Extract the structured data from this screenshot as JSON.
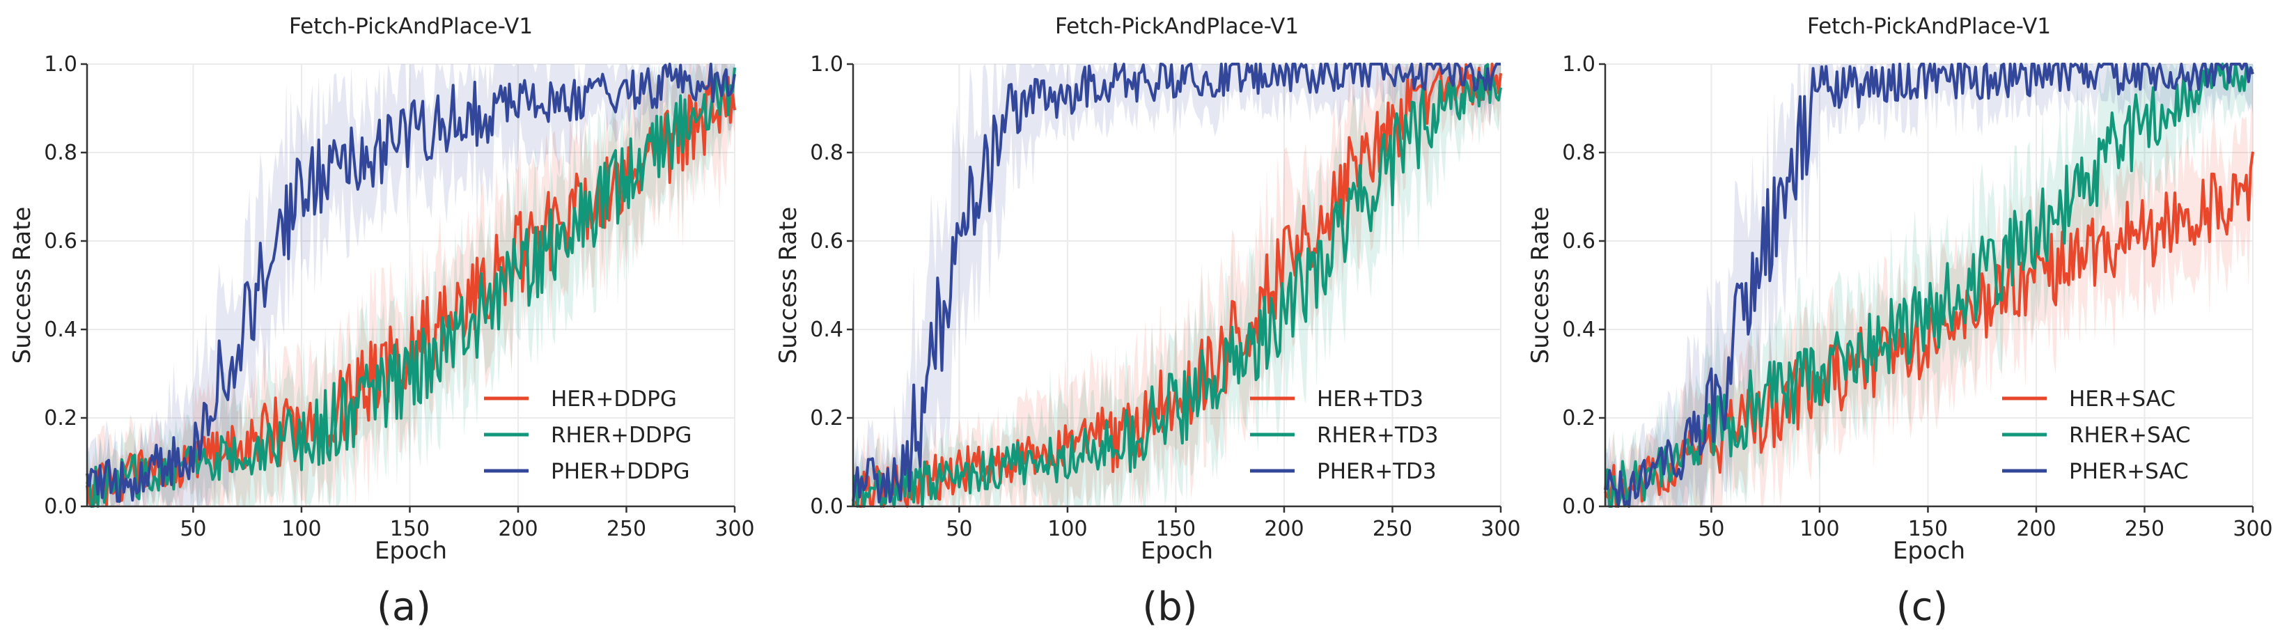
{
  "chart_data": [
    {
      "type": "line",
      "title": "Fetch-PickAndPlace-V1",
      "xlabel": "Epoch",
      "ylabel": "Success Rate",
      "xlim": [
        1,
        300
      ],
      "ylim": [
        0,
        1.0
      ],
      "xticks": [
        "50",
        "100",
        "150",
        "200",
        "250",
        "300"
      ],
      "yticks": [
        "0.0",
        "0.2",
        "0.4",
        "0.6",
        "0.8",
        "1.0"
      ],
      "caption": "(a)",
      "legend_position": "lower-right",
      "series": [
        {
          "name": "HER+DDPG",
          "color": "#e8472b",
          "x": [
            1,
            25,
            50,
            75,
            100,
            125,
            150,
            175,
            200,
            225,
            250,
            275,
            300
          ],
          "values": [
            0.03,
            0.08,
            0.1,
            0.14,
            0.18,
            0.25,
            0.36,
            0.45,
            0.57,
            0.66,
            0.75,
            0.84,
            0.93
          ]
        },
        {
          "name": "RHER+DDPG",
          "color": "#12977a",
          "x": [
            1,
            25,
            50,
            75,
            100,
            125,
            150,
            175,
            200,
            225,
            250,
            275,
            300
          ],
          "values": [
            0.03,
            0.07,
            0.09,
            0.12,
            0.16,
            0.22,
            0.3,
            0.4,
            0.52,
            0.63,
            0.75,
            0.86,
            0.95
          ]
        },
        {
          "name": "PHER+DDPG",
          "color": "#33479a",
          "x": [
            1,
            25,
            50,
            75,
            100,
            125,
            150,
            175,
            200,
            225,
            250,
            275,
            300
          ],
          "values": [
            0.05,
            0.07,
            0.13,
            0.45,
            0.72,
            0.79,
            0.84,
            0.88,
            0.91,
            0.92,
            0.94,
            0.96,
            0.97
          ]
        }
      ]
    },
    {
      "type": "line",
      "title": "Fetch-PickAndPlace-V1",
      "xlabel": "Epoch",
      "ylabel": "Success Rate",
      "xlim": [
        1,
        300
      ],
      "ylim": [
        0,
        1.0
      ],
      "xticks": [
        "50",
        "100",
        "150",
        "200",
        "250",
        "300"
      ],
      "yticks": [
        "0.0",
        "0.2",
        "0.4",
        "0.6",
        "0.8",
        "1.0"
      ],
      "caption": "(b)",
      "legend_position": "lower-right",
      "series": [
        {
          "name": "HER+TD3",
          "color": "#e8472b",
          "x": [
            1,
            25,
            50,
            75,
            100,
            125,
            150,
            175,
            200,
            225,
            250,
            275,
            300
          ],
          "values": [
            0.03,
            0.05,
            0.08,
            0.1,
            0.13,
            0.17,
            0.24,
            0.36,
            0.55,
            0.72,
            0.86,
            0.95,
            0.97
          ]
        },
        {
          "name": "RHER+TD3",
          "color": "#12977a",
          "x": [
            1,
            25,
            50,
            75,
            100,
            125,
            150,
            175,
            200,
            225,
            250,
            275,
            300
          ],
          "values": [
            0.03,
            0.04,
            0.07,
            0.09,
            0.11,
            0.15,
            0.22,
            0.31,
            0.44,
            0.6,
            0.78,
            0.92,
            0.97
          ]
        },
        {
          "name": "PHER+TD3",
          "color": "#33479a",
          "x": [
            1,
            25,
            50,
            75,
            100,
            125,
            150,
            175,
            200,
            225,
            250,
            275,
            300
          ],
          "values": [
            0.05,
            0.07,
            0.6,
            0.9,
            0.94,
            0.96,
            0.97,
            0.98,
            0.98,
            0.99,
            0.99,
            0.99,
            0.99
          ]
        }
      ]
    },
    {
      "type": "line",
      "title": "Fetch-PickAndPlace-V1",
      "xlabel": "Epoch",
      "ylabel": "Success Rate",
      "xlim": [
        1,
        300
      ],
      "ylim": [
        0,
        1.0
      ],
      "xticks": [
        "50",
        "100",
        "150",
        "200",
        "250",
        "300"
      ],
      "yticks": [
        "0.0",
        "0.2",
        "0.4",
        "0.6",
        "0.8",
        "1.0"
      ],
      "caption": "(c)",
      "legend_position": "lower-right",
      "series": [
        {
          "name": "HER+SAC",
          "color": "#e8472b",
          "x": [
            1,
            25,
            50,
            75,
            100,
            125,
            150,
            175,
            200,
            225,
            250,
            275,
            300
          ],
          "values": [
            0.04,
            0.07,
            0.14,
            0.21,
            0.28,
            0.33,
            0.38,
            0.45,
            0.52,
            0.57,
            0.62,
            0.67,
            0.72
          ]
        },
        {
          "name": "RHER+SAC",
          "color": "#12977a",
          "x": [
            1,
            25,
            50,
            75,
            100,
            125,
            150,
            175,
            200,
            225,
            250,
            275,
            300
          ],
          "values": [
            0.04,
            0.07,
            0.16,
            0.24,
            0.3,
            0.36,
            0.43,
            0.52,
            0.62,
            0.75,
            0.88,
            0.95,
            0.97
          ]
        },
        {
          "name": "PHER+SAC",
          "color": "#33479a",
          "x": [
            1,
            25,
            50,
            75,
            100,
            125,
            150,
            175,
            200,
            225,
            250,
            275,
            300
          ],
          "values": [
            0.04,
            0.06,
            0.2,
            0.6,
            0.93,
            0.96,
            0.97,
            0.97,
            0.98,
            0.98,
            0.98,
            0.98,
            0.99
          ]
        }
      ]
    }
  ]
}
